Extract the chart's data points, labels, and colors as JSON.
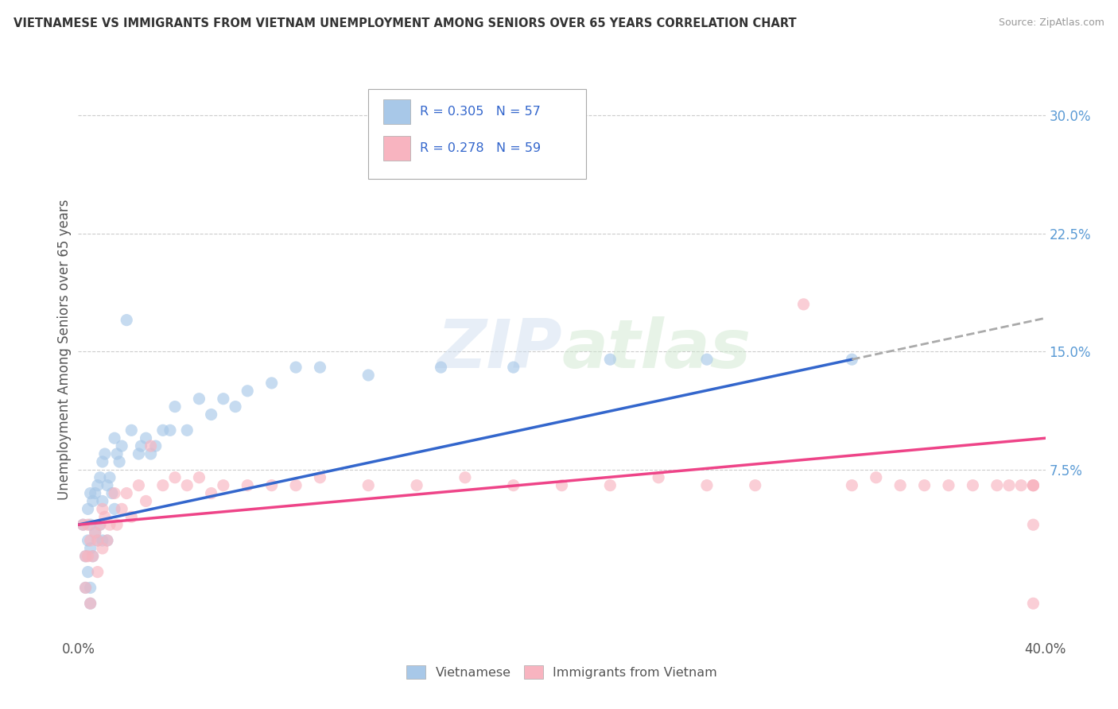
{
  "title": "VIETNAMESE VS IMMIGRANTS FROM VIETNAM UNEMPLOYMENT AMONG SENIORS OVER 65 YEARS CORRELATION CHART",
  "source": "Source: ZipAtlas.com",
  "ylabel": "Unemployment Among Seniors over 65 years",
  "xlim": [
    0.0,
    0.4
  ],
  "ylim": [
    -0.032,
    0.335
  ],
  "ytick_positions": [
    0.075,
    0.15,
    0.225,
    0.3
  ],
  "ytick_labels": [
    "7.5%",
    "15.0%",
    "22.5%",
    "30.0%"
  ],
  "color_vietnamese": "#a8c8e8",
  "color_immigrant": "#f8b4c0",
  "trend_color_vietnamese": "#3366cc",
  "trend_color_immigrant": "#ee4488",
  "trend_color_dashed": "#aaaaaa",
  "background_color": "#ffffff",
  "watermark_text": "ZIPatlas",
  "legend_label1": "R = 0.305   N = 57",
  "legend_label2": "R = 0.278   N = 59",
  "legend_text_color": "#3366cc",
  "bottom_label1": "Vietnamese",
  "bottom_label2": "Immigrants from Vietnam",
  "viet_x": [
    0.002,
    0.003,
    0.003,
    0.004,
    0.004,
    0.004,
    0.005,
    0.005,
    0.005,
    0.005,
    0.005,
    0.006,
    0.006,
    0.007,
    0.007,
    0.008,
    0.008,
    0.009,
    0.009,
    0.01,
    0.01,
    0.01,
    0.011,
    0.012,
    0.012,
    0.013,
    0.014,
    0.015,
    0.015,
    0.016,
    0.017,
    0.018,
    0.02,
    0.022,
    0.025,
    0.026,
    0.028,
    0.03,
    0.032,
    0.035,
    0.038,
    0.04,
    0.045,
    0.05,
    0.055,
    0.06,
    0.065,
    0.07,
    0.08,
    0.09,
    0.1,
    0.12,
    0.15,
    0.18,
    0.22,
    0.26,
    0.32
  ],
  "viet_y": [
    0.04,
    0.02,
    0.0,
    0.05,
    0.03,
    0.01,
    0.06,
    0.04,
    0.025,
    0.0,
    -0.01,
    0.055,
    0.02,
    0.06,
    0.035,
    0.065,
    0.03,
    0.07,
    0.04,
    0.08,
    0.055,
    0.03,
    0.085,
    0.065,
    0.03,
    0.07,
    0.06,
    0.095,
    0.05,
    0.085,
    0.08,
    0.09,
    0.17,
    0.1,
    0.085,
    0.09,
    0.095,
    0.085,
    0.09,
    0.1,
    0.1,
    0.115,
    0.1,
    0.12,
    0.11,
    0.12,
    0.115,
    0.125,
    0.13,
    0.14,
    0.14,
    0.135,
    0.14,
    0.14,
    0.145,
    0.145,
    0.145
  ],
  "imm_x": [
    0.002,
    0.003,
    0.003,
    0.004,
    0.004,
    0.005,
    0.005,
    0.006,
    0.007,
    0.008,
    0.008,
    0.009,
    0.01,
    0.01,
    0.011,
    0.012,
    0.013,
    0.015,
    0.016,
    0.018,
    0.02,
    0.022,
    0.025,
    0.028,
    0.03,
    0.035,
    0.04,
    0.045,
    0.05,
    0.055,
    0.06,
    0.07,
    0.08,
    0.09,
    0.1,
    0.12,
    0.14,
    0.16,
    0.18,
    0.2,
    0.22,
    0.24,
    0.26,
    0.28,
    0.3,
    0.32,
    0.33,
    0.34,
    0.35,
    0.36,
    0.37,
    0.38,
    0.385,
    0.39,
    0.395,
    0.395,
    0.395,
    0.395,
    0.395
  ],
  "imm_y": [
    0.04,
    0.02,
    0.0,
    0.04,
    0.02,
    -0.01,
    0.03,
    0.02,
    0.035,
    0.03,
    0.01,
    0.04,
    0.05,
    0.025,
    0.045,
    0.03,
    0.04,
    0.06,
    0.04,
    0.05,
    0.06,
    0.045,
    0.065,
    0.055,
    0.09,
    0.065,
    0.07,
    0.065,
    0.07,
    0.06,
    0.065,
    0.065,
    0.065,
    0.065,
    0.07,
    0.065,
    0.065,
    0.07,
    0.065,
    0.065,
    0.065,
    0.07,
    0.065,
    0.065,
    0.18,
    0.065,
    0.07,
    0.065,
    0.065,
    0.065,
    0.065,
    0.065,
    0.065,
    0.065,
    0.04,
    -0.01,
    0.065,
    0.065,
    0.065
  ]
}
